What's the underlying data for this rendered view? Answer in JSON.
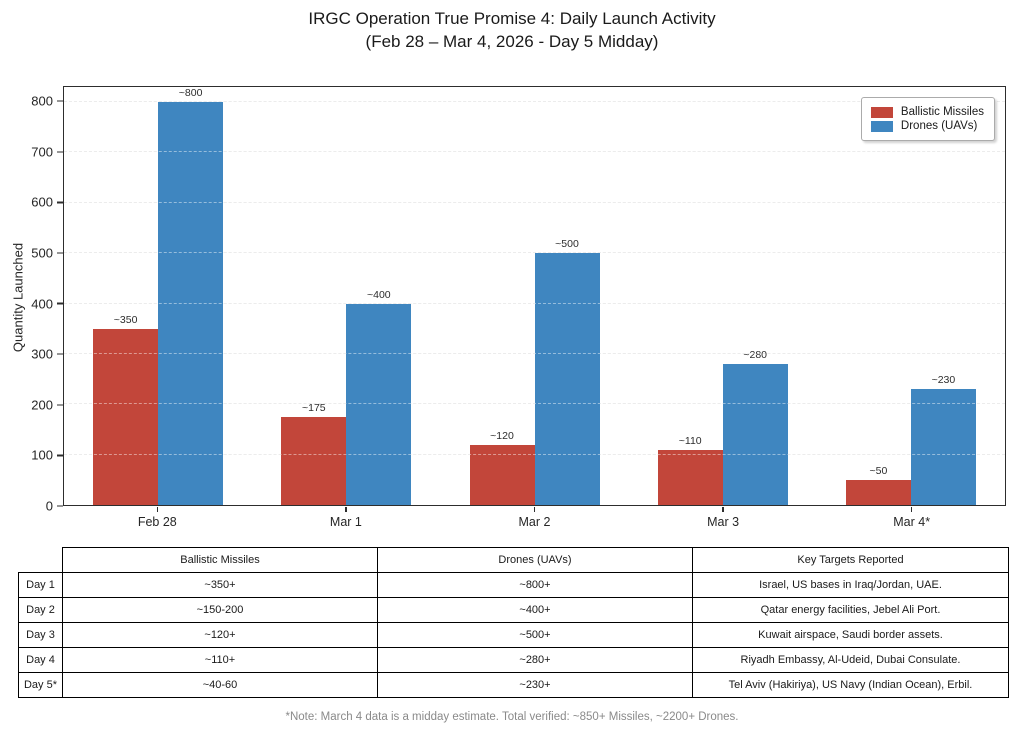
{
  "title": {
    "line1": "IRGC Operation True Promise 4: Daily Launch Activity",
    "line2": "(Feb 28 – Mar 4, 2026 - Day 5 Midday)"
  },
  "chart_data": {
    "type": "bar",
    "categories": [
      "Feb 28",
      "Mar 1",
      "Mar 2",
      "Mar 3",
      "Mar 4*"
    ],
    "series": [
      {
        "name": "Ballistic Missiles",
        "color": "#c2463a",
        "values": [
          350,
          175,
          120,
          110,
          50
        ],
        "labels": [
          "~350",
          "~175",
          "~120",
          "~110",
          "~50"
        ]
      },
      {
        "name": "Drones (UAVs)",
        "color": "#3f86c0",
        "values": [
          800,
          400,
          500,
          280,
          230
        ],
        "labels": [
          "~800",
          "~400",
          "~500",
          "~280",
          "~230"
        ]
      }
    ],
    "xlabel": "",
    "ylabel": "Quantity Launched",
    "ylim": [
      0,
      830
    ],
    "yticks": [
      0,
      100,
      200,
      300,
      400,
      500,
      600,
      700,
      800
    ],
    "grid": "horizontal-dashed",
    "legend_position": "top-right-inside"
  },
  "table": {
    "corner_label": "",
    "columns": [
      "Ballistic Missiles",
      "Drones (UAVs)",
      "Key Targets Reported"
    ],
    "rows": [
      {
        "day": "Day 1",
        "missiles": "~350+",
        "drones": "~800+",
        "targets": "Israel, US bases in Iraq/Jordan, UAE."
      },
      {
        "day": "Day 2",
        "missiles": "~150-200",
        "drones": "~400+",
        "targets": "Qatar energy facilities, Jebel Ali Port."
      },
      {
        "day": "Day 3",
        "missiles": "~120+",
        "drones": "~500+",
        "targets": "Kuwait airspace, Saudi border assets."
      },
      {
        "day": "Day 4",
        "missiles": "~110+",
        "drones": "~280+",
        "targets": "Riyadh Embassy, Al-Udeid, Dubai Consulate."
      },
      {
        "day": "Day 5*",
        "missiles": "~40-60",
        "drones": "~230+",
        "targets": "Tel Aviv (Hakiriya), US Navy (Indian Ocean), Erbil."
      }
    ]
  },
  "footnote": "*Note: March 4 data is a midday estimate. Total verified: ~850+ Missiles, ~2200+ Drones."
}
